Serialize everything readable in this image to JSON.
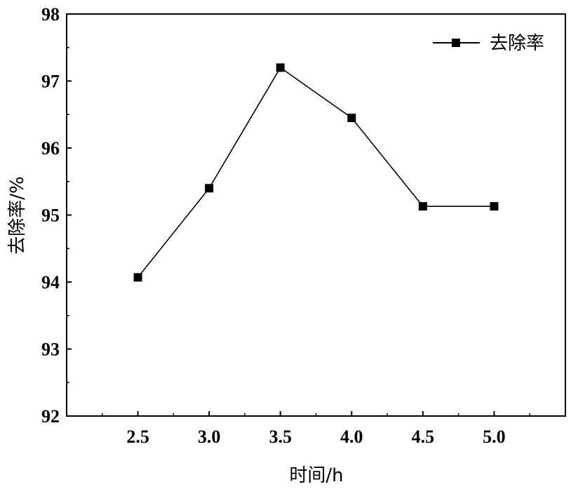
{
  "chart_data": {
    "type": "line",
    "x": [
      2.5,
      3.0,
      3.5,
      4.0,
      4.5,
      5.0
    ],
    "x_tick_labels": [
      "2.5",
      "3.0",
      "3.5",
      "4.0",
      "4.5",
      "5.0"
    ],
    "series": [
      {
        "name": "去除率",
        "values": [
          94.07,
          95.4,
          97.2,
          96.45,
          95.13,
          95.13
        ]
      }
    ],
    "title": "",
    "xlabel": "时间/h",
    "ylabel": "去除率/%",
    "xlim": [
      2.0,
      5.5
    ],
    "ylim": [
      92,
      98
    ],
    "y_ticks": [
      92,
      93,
      94,
      95,
      96,
      97,
      98
    ],
    "y_tick_labels": [
      "92",
      "93",
      "94",
      "95",
      "96",
      "97",
      "98"
    ],
    "grid": false,
    "legend_position": "top-right",
    "marker": "square",
    "line_color": "#000000"
  }
}
